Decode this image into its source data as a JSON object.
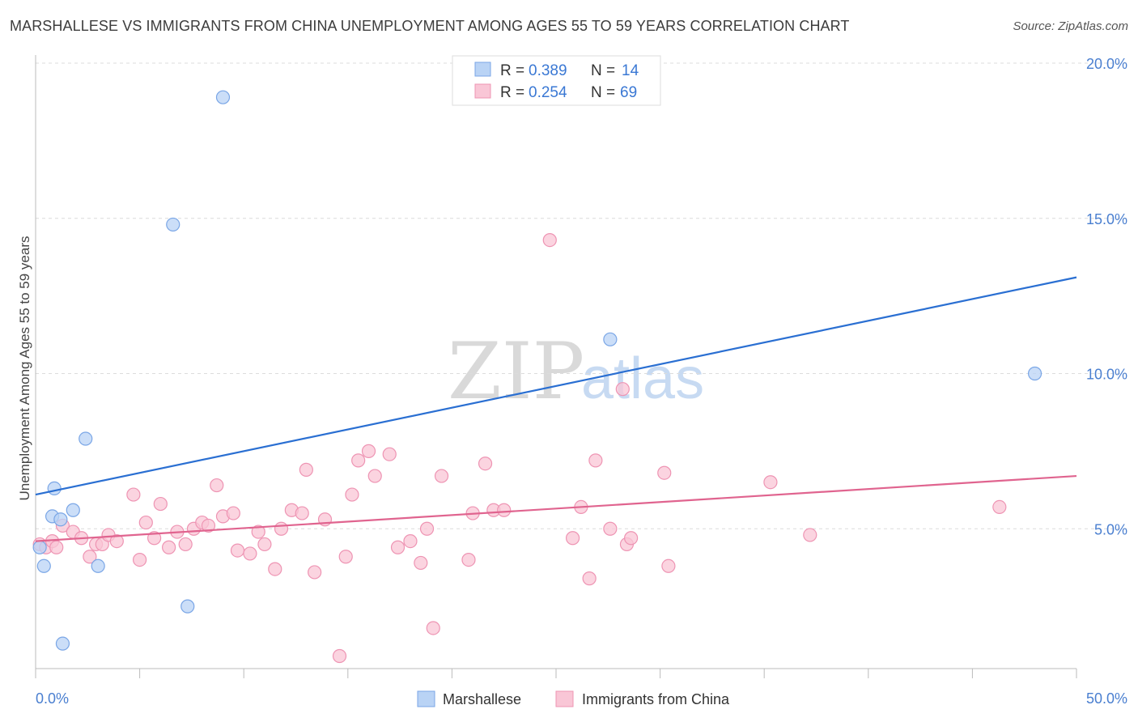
{
  "header": {
    "title": "MARSHALLESE VS IMMIGRANTS FROM CHINA UNEMPLOYMENT AMONG AGES 55 TO 59 YEARS CORRELATION CHART",
    "source": "Source: ZipAtlas.com"
  },
  "watermark": {
    "zip": "ZIP",
    "atlas": "atlas"
  },
  "legend": {
    "items": [
      {
        "r_label": "R = ",
        "r_value": "0.389",
        "n_label": "N = ",
        "n_value": "14",
        "color_fill": "#b9d3f5",
        "color_stroke": "#7aa6e6"
      },
      {
        "r_label": "R = ",
        "r_value": "0.254",
        "n_label": "N = ",
        "n_value": "69",
        "color_fill": "#f9c6d6",
        "color_stroke": "#ee94b3"
      }
    ]
  },
  "bottom_legend": {
    "items": [
      {
        "label": "Marshallese",
        "color_fill": "#b9d3f5",
        "color_stroke": "#7aa6e6"
      },
      {
        "label": "Immigrants from China",
        "color_fill": "#f9c6d6",
        "color_stroke": "#ee94b3"
      }
    ]
  },
  "chart_data": {
    "type": "scatter",
    "title": "MARSHALLESE VS IMMIGRANTS FROM CHINA UNEMPLOYMENT AMONG AGES 55 TO 59 YEARS CORRELATION CHART",
    "xlabel": "",
    "ylabel": "Unemployment Among Ages 55 to 59 years",
    "xlim": [
      0,
      50
    ],
    "ylim": [
      0,
      20
    ],
    "x_tick_labels": [
      "0.0%",
      "50.0%"
    ],
    "y_ticks": [
      5,
      10,
      15,
      20
    ],
    "y_tick_labels": [
      "5.0%",
      "10.0%",
      "15.0%",
      "20.0%"
    ],
    "grid": true,
    "legend_placement": "top-center",
    "series": [
      {
        "name": "Marshallese",
        "color": "#7aa6e6",
        "fill": "#b9d3f5",
        "line_color": "#2a6fd2",
        "trend": {
          "x": [
            0,
            50
          ],
          "y": [
            6.1,
            13.1
          ]
        },
        "points": [
          [
            0.2,
            4.4
          ],
          [
            0.4,
            3.8
          ],
          [
            0.8,
            5.4
          ],
          [
            0.9,
            6.3
          ],
          [
            1.2,
            5.3
          ],
          [
            1.3,
            1.3
          ],
          [
            1.8,
            5.6
          ],
          [
            2.4,
            7.9
          ],
          [
            3.0,
            3.8
          ],
          [
            6.6,
            14.8
          ],
          [
            7.3,
            2.5
          ],
          [
            9.0,
            18.9
          ],
          [
            27.6,
            11.1
          ],
          [
            48.0,
            10.0
          ]
        ]
      },
      {
        "name": "Immigrants from China",
        "color": "#ee94b3",
        "fill": "#f9c6d6",
        "line_color": "#e0648f",
        "trend": {
          "x": [
            0,
            50
          ],
          "y": [
            4.6,
            6.7
          ]
        },
        "points": [
          [
            0.2,
            4.5
          ],
          [
            0.5,
            4.4
          ],
          [
            0.8,
            4.6
          ],
          [
            1.0,
            4.4
          ],
          [
            1.3,
            5.1
          ],
          [
            1.8,
            4.9
          ],
          [
            2.2,
            4.7
          ],
          [
            2.6,
            4.1
          ],
          [
            2.9,
            4.5
          ],
          [
            3.2,
            4.5
          ],
          [
            3.5,
            4.8
          ],
          [
            3.9,
            4.6
          ],
          [
            4.7,
            6.1
          ],
          [
            5.0,
            4.0
          ],
          [
            5.3,
            5.2
          ],
          [
            5.7,
            4.7
          ],
          [
            6.0,
            5.8
          ],
          [
            6.4,
            4.4
          ],
          [
            6.8,
            4.9
          ],
          [
            7.2,
            4.5
          ],
          [
            7.6,
            5.0
          ],
          [
            8.0,
            5.2
          ],
          [
            8.3,
            5.1
          ],
          [
            8.7,
            6.4
          ],
          [
            9.0,
            5.4
          ],
          [
            9.5,
            5.5
          ],
          [
            9.7,
            4.3
          ],
          [
            10.3,
            4.2
          ],
          [
            10.7,
            4.9
          ],
          [
            11.0,
            4.5
          ],
          [
            11.5,
            3.7
          ],
          [
            11.8,
            5.0
          ],
          [
            12.3,
            5.6
          ],
          [
            12.8,
            5.5
          ],
          [
            13.0,
            6.9
          ],
          [
            13.4,
            3.6
          ],
          [
            13.9,
            5.3
          ],
          [
            14.6,
            0.9
          ],
          [
            14.9,
            4.1
          ],
          [
            15.2,
            6.1
          ],
          [
            15.5,
            7.2
          ],
          [
            16.0,
            7.5
          ],
          [
            16.3,
            6.7
          ],
          [
            17.0,
            7.4
          ],
          [
            17.4,
            4.4
          ],
          [
            18.0,
            4.6
          ],
          [
            18.5,
            3.9
          ],
          [
            18.8,
            5.0
          ],
          [
            19.1,
            1.8
          ],
          [
            19.5,
            6.7
          ],
          [
            20.8,
            4.0
          ],
          [
            21.0,
            5.5
          ],
          [
            21.6,
            7.1
          ],
          [
            22.0,
            5.6
          ],
          [
            22.5,
            5.6
          ],
          [
            24.7,
            14.3
          ],
          [
            25.8,
            4.7
          ],
          [
            26.2,
            5.7
          ],
          [
            26.6,
            3.4
          ],
          [
            26.9,
            7.2
          ],
          [
            27.6,
            5.0
          ],
          [
            28.2,
            9.5
          ],
          [
            28.4,
            4.5
          ],
          [
            28.6,
            4.7
          ],
          [
            30.2,
            6.8
          ],
          [
            30.4,
            3.8
          ],
          [
            35.3,
            6.5
          ],
          [
            37.2,
            4.8
          ],
          [
            46.3,
            5.7
          ]
        ]
      }
    ]
  }
}
